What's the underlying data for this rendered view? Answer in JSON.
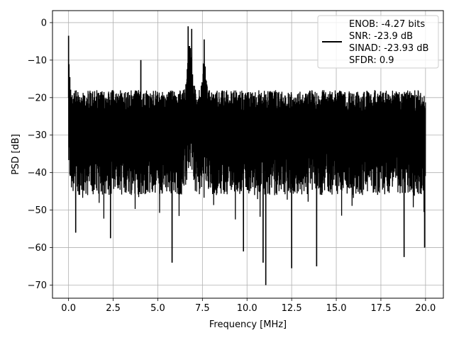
{
  "chart_data": {
    "type": "line",
    "xlabel": "Frequency [MHz]",
    "ylabel": "PSD [dB]",
    "xlim": [
      -0.9,
      21.0
    ],
    "ylim": [
      -73.5,
      3.2
    ],
    "x_ticks": [
      0.0,
      2.5,
      5.0,
      7.5,
      10.0,
      12.5,
      15.0,
      17.5,
      20.0
    ],
    "x_tick_labels": [
      "0.0",
      "2.5",
      "5.0",
      "7.5",
      "10.0",
      "12.5",
      "15.0",
      "17.5",
      "20.0"
    ],
    "y_ticks": [
      0,
      -10,
      -20,
      -30,
      -40,
      -50,
      -60,
      -70
    ],
    "y_tick_labels": [
      "0",
      "−10",
      "−20",
      "−30",
      "−40",
      "−50",
      "−60",
      "−70"
    ],
    "grid": true,
    "legend_position": "top-right",
    "line_color": "#000000",
    "series": [
      {
        "legend_lines": [
          "ENOB: -4.27 bits",
          "SNR: -23.9 dB",
          "SINAD: -23.93 dB",
          "SFDR: 0.9"
        ],
        "x_range": [
          0.0,
          20.0
        ],
        "noise_floor_top_db": -18,
        "noise_floor_bottom_db": -46,
        "peaks": [
          {
            "x": 0.0,
            "y": -3.5
          },
          {
            "x": 4.05,
            "y": -10
          },
          {
            "x": 6.7,
            "y": -1.0
          },
          {
            "x": 6.9,
            "y": -1.7
          },
          {
            "x": 7.6,
            "y": -4.5
          }
        ],
        "dips": [
          {
            "x": 0.4,
            "y": -56
          },
          {
            "x": 2.35,
            "y": -57.5
          },
          {
            "x": 5.8,
            "y": -64
          },
          {
            "x": 9.8,
            "y": -61
          },
          {
            "x": 10.9,
            "y": -64
          },
          {
            "x": 11.05,
            "y": -70
          },
          {
            "x": 12.5,
            "y": -65.5
          },
          {
            "x": 13.9,
            "y": -65
          },
          {
            "x": 18.8,
            "y": -62.5
          },
          {
            "x": 19.95,
            "y": -60
          }
        ]
      }
    ]
  }
}
